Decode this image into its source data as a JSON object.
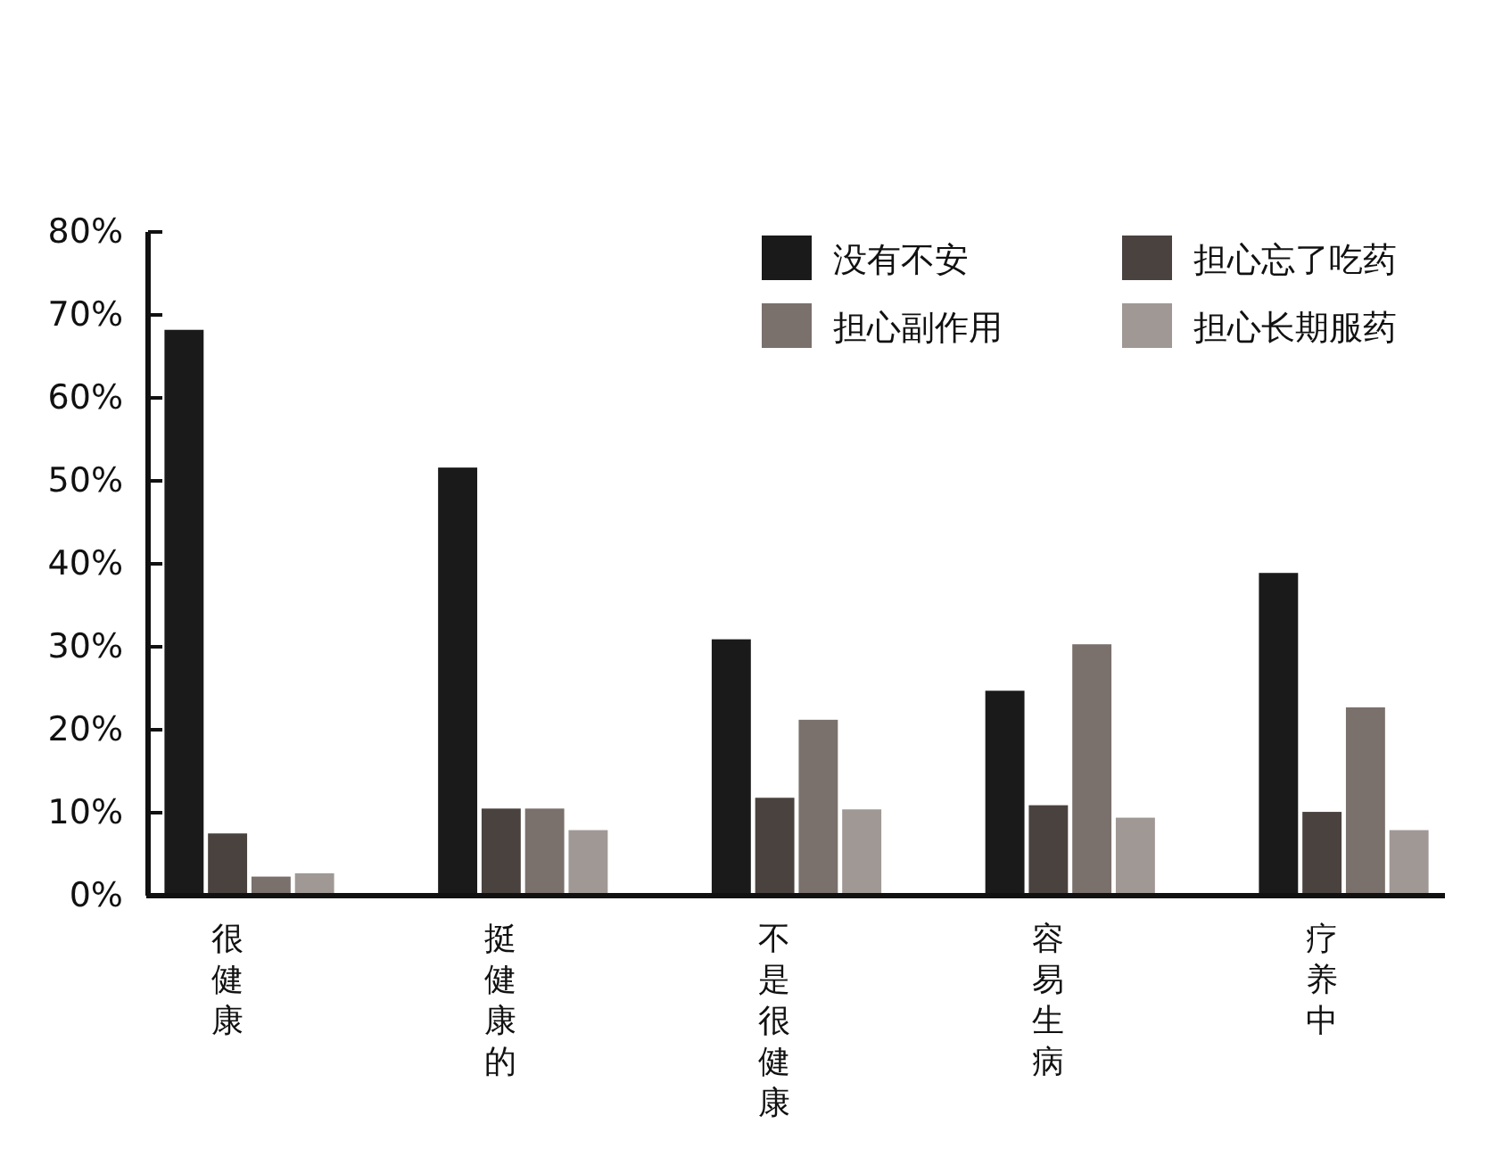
{
  "chart_data": {
    "type": "bar",
    "categories": [
      "很健康",
      "挺健康的",
      "不是很健康",
      "容易生病",
      "疗养中"
    ],
    "series": [
      {
        "name": "没有不安",
        "color": "#1a1a1a",
        "values": [
          68.2,
          51.6,
          30.9,
          24.7,
          38.9
        ]
      },
      {
        "name": "担心忘了吃药",
        "color": "#4a423f",
        "values": [
          7.5,
          10.5,
          11.8,
          10.9,
          10.1
        ]
      },
      {
        "name": "担心副作用",
        "color": "#7a706c",
        "values": [
          2.3,
          10.5,
          21.2,
          30.3,
          22.7
        ]
      },
      {
        "name": "担心长期服药",
        "color": "#a09895",
        "values": [
          2.7,
          7.9,
          10.4,
          9.4,
          7.9
        ]
      }
    ],
    "ylim": [
      0,
      80
    ],
    "yticks": [
      {
        "value": 0,
        "label": "0%"
      },
      {
        "value": 10,
        "label": "10%"
      },
      {
        "value": 20,
        "label": "20%"
      },
      {
        "value": 30,
        "label": "30%"
      },
      {
        "value": 40,
        "label": "40%"
      },
      {
        "value": 50,
        "label": "50%"
      },
      {
        "value": 60,
        "label": "60%"
      },
      {
        "value": 70,
        "label": "70%"
      },
      {
        "value": 80,
        "label": "80%"
      }
    ],
    "grid": false,
    "legend": "top right"
  }
}
